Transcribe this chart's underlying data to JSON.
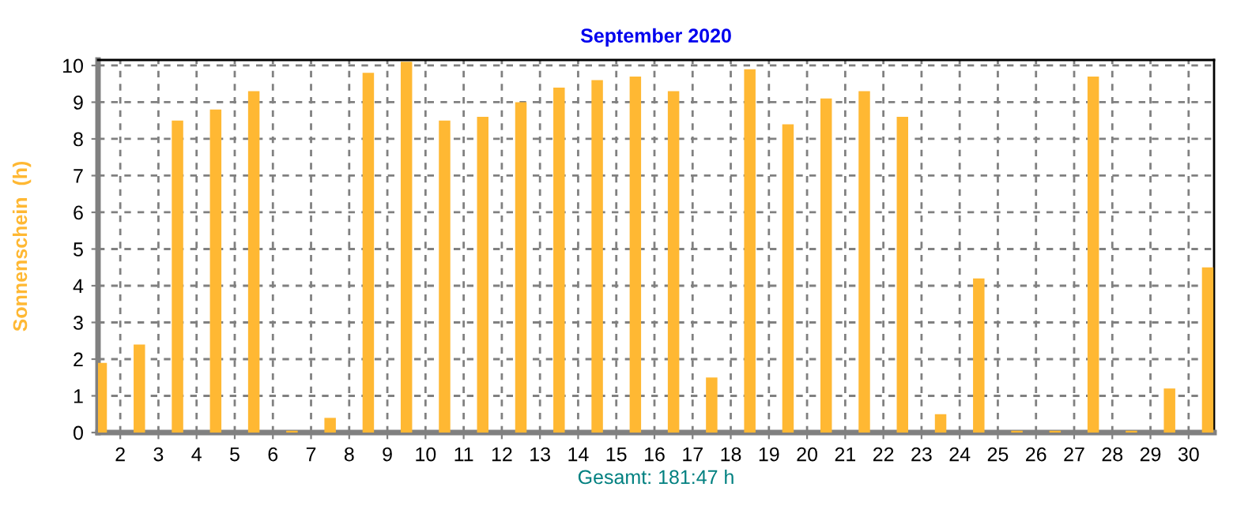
{
  "chart_data": {
    "type": "bar",
    "title": "September 2020",
    "xlabel": "Gesamt: 181:47 h",
    "ylabel": "Sonnenschein  (h)",
    "x": [
      "2020-09-01T12:00",
      "2020-09-02T12:00",
      "2020-09-03T12:00",
      "2020-09-04T12:00",
      "2020-09-05T12:00",
      "2020-09-06T12:00",
      "2020-09-07T12:00",
      "2020-09-08T12:00",
      "2020-09-09T12:00",
      "2020-09-10T12:00",
      "2020-09-11T12:00",
      "2020-09-12T12:00",
      "2020-09-13T12:00",
      "2020-09-14T12:00",
      "2020-09-15T12:00",
      "2020-09-16T12:00",
      "2020-09-17T12:00",
      "2020-09-18T12:00",
      "2020-09-19T12:00",
      "2020-09-20T12:00",
      "2020-09-21T12:00",
      "2020-09-22T12:00",
      "2020-09-23T12:00",
      "2020-09-24T12:00",
      "2020-09-25T12:00",
      "2020-09-26T12:00",
      "2020-09-27T12:00",
      "2020-09-28T12:00",
      "2020-09-29T12:00",
      "2020-09-30T12:00"
    ],
    "series": [
      {
        "color": "#ffb833",
        "values": [
          1.9,
          2.4,
          8.5,
          8.8,
          9.3,
          0.05,
          0.4,
          9.8,
          10.1,
          8.5,
          8.6,
          9.0,
          9.4,
          9.6,
          9.7,
          9.3,
          1.5,
          9.9,
          8.4,
          9.1,
          9.3,
          8.6,
          0.5,
          4.2,
          0.05,
          0.05,
          9.7,
          0.05,
          1.2,
          4.5
        ]
      }
    ],
    "xlim": [
      "2020-09-01T10:00",
      "2020-09-30T16:00"
    ],
    "xticks": [
      {
        "value": "2020-09-02",
        "label": "2"
      },
      {
        "value": "2020-09-03",
        "label": "3"
      },
      {
        "value": "2020-09-04",
        "label": "4"
      },
      {
        "value": "2020-09-05",
        "label": "5"
      },
      {
        "value": "2020-09-06",
        "label": "6"
      },
      {
        "value": "2020-09-07",
        "label": "7"
      },
      {
        "value": "2020-09-08",
        "label": "8"
      },
      {
        "value": "2020-09-09",
        "label": "9"
      },
      {
        "value": "2020-09-10",
        "label": "10"
      },
      {
        "value": "2020-09-11",
        "label": "11"
      },
      {
        "value": "2020-09-12",
        "label": "12"
      },
      {
        "value": "2020-09-13",
        "label": "13"
      },
      {
        "value": "2020-09-14",
        "label": "14"
      },
      {
        "value": "2020-09-15",
        "label": "15"
      },
      {
        "value": "2020-09-16",
        "label": "16"
      },
      {
        "value": "2020-09-17",
        "label": "17"
      },
      {
        "value": "2020-09-18",
        "label": "18"
      },
      {
        "value": "2020-09-19",
        "label": "19"
      },
      {
        "value": "2020-09-20",
        "label": "20"
      },
      {
        "value": "2020-09-21",
        "label": "21"
      },
      {
        "value": "2020-09-22",
        "label": "22"
      },
      {
        "value": "2020-09-23",
        "label": "23"
      },
      {
        "value": "2020-09-24",
        "label": "24"
      },
      {
        "value": "2020-09-25",
        "label": "25"
      },
      {
        "value": "2020-09-26",
        "label": "26"
      },
      {
        "value": "2020-09-27",
        "label": "27"
      },
      {
        "value": "2020-09-28",
        "label": "28"
      },
      {
        "value": "2020-09-29",
        "label": "29"
      },
      {
        "value": "2020-09-30",
        "label": "30"
      }
    ],
    "ylim": [
      0,
      10.15
    ],
    "yticks": [
      0,
      1,
      2,
      3,
      4,
      5,
      6,
      7,
      8,
      9,
      10
    ],
    "grid": true,
    "legend": false
  }
}
